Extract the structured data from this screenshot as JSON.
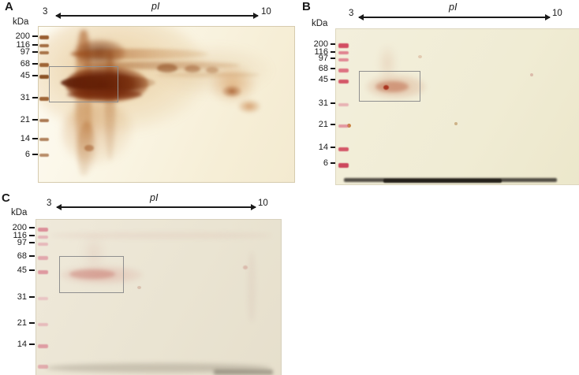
{
  "figure": {
    "description": "Two-dimensional gel panels with pI gradient and molecular weight markers",
    "panels": [
      {
        "label": "A",
        "mw_unit": "kDa",
        "pi": {
          "label": "pI",
          "min": "3",
          "max": "10"
        },
        "ladder": [
          "200",
          "116",
          "97",
          "68",
          "45",
          "31",
          "21",
          "14",
          "6"
        ]
      },
      {
        "label": "B",
        "mw_unit": "kDa",
        "pi": {
          "label": "pI",
          "min": "3",
          "max": "10"
        },
        "ladder": [
          "200",
          "116",
          "97",
          "68",
          "45",
          "31",
          "21",
          "14",
          "6"
        ]
      },
      {
        "label": "C",
        "mw_unit": "kDa",
        "pi": {
          "label": "pI",
          "min": "3",
          "max": "10"
        },
        "ladder": [
          "200",
          "116",
          "97",
          "68",
          "45",
          "31",
          "21",
          "14"
        ]
      }
    ],
    "colors": {
      "silver_stain_dark": "#6b2306",
      "silver_stain_mid": "#a0521a",
      "silver_stain_light": "#cf8d3a",
      "blot_pink": "#d95f72",
      "gel_background_a": "#f6eed6",
      "gel_background_b": "#f0ecd4",
      "gel_background_c": "#eae4d2",
      "highlight_box_border": "#8f8f8f"
    }
  }
}
